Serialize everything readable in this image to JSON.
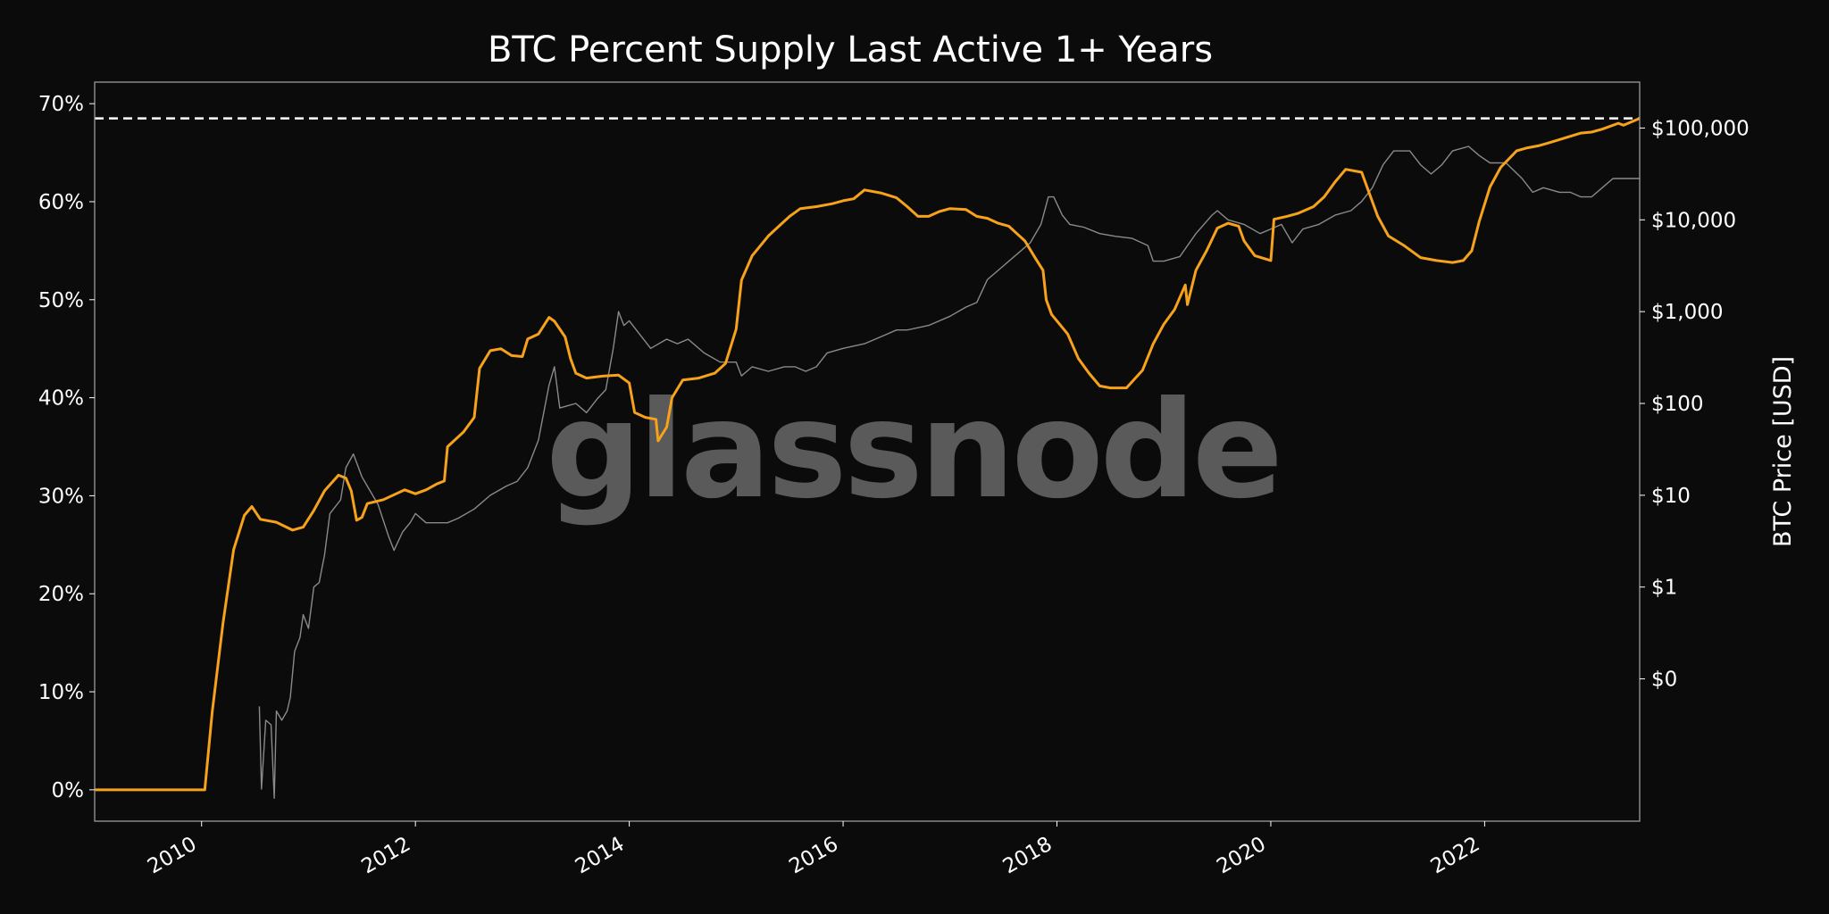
{
  "chart_data": {
    "type": "line",
    "title": "BTC Percent Supply Last Active 1+ Years",
    "ylabel_right": "BTC Price [USD]",
    "watermark": "glassnode",
    "colors": {
      "background": "#0b0b0b",
      "supply": "#f7a21b",
      "price": "#8a8a8a",
      "ath_line": "#ffffff",
      "frame": "#9a9a9a"
    },
    "grid": false,
    "x_range": [
      2009.0,
      2023.45
    ],
    "x_ticks": [
      {
        "value": 2010,
        "label": "2010"
      },
      {
        "value": 2012,
        "label": "2012"
      },
      {
        "value": 2014,
        "label": "2014"
      },
      {
        "value": 2016,
        "label": "2016"
      },
      {
        "value": 2018,
        "label": "2018"
      },
      {
        "value": 2020,
        "label": "2020"
      },
      {
        "value": 2022,
        "label": "2022"
      }
    ],
    "y_left": {
      "range": [
        -3.2,
        72.2
      ],
      "ticks": [
        {
          "value": 0,
          "label": "0%"
        },
        {
          "value": 10,
          "label": "10%"
        },
        {
          "value": 20,
          "label": "20%"
        },
        {
          "value": 30,
          "label": "30%"
        },
        {
          "value": 40,
          "label": "40%"
        },
        {
          "value": 50,
          "label": "50%"
        },
        {
          "value": 60,
          "label": "60%"
        },
        {
          "value": 70,
          "label": "70%"
        }
      ]
    },
    "y_right": {
      "scale": "log",
      "range_log10": [
        -2.55,
        5.5
      ],
      "ticks": [
        {
          "log10": -1,
          "label": "$0"
        },
        {
          "log10": 0,
          "label": "$1"
        },
        {
          "log10": 1,
          "label": "$10"
        },
        {
          "log10": 2,
          "label": "$100"
        },
        {
          "log10": 3,
          "label": "$1,000"
        },
        {
          "log10": 4,
          "label": "$10,000"
        },
        {
          "log10": 5,
          "label": "$100,000"
        }
      ]
    },
    "ath_level": 68.5,
    "series": [
      {
        "name": "",
        "axis": "left",
        "points": [
          [
            2009.0,
            0
          ],
          [
            2010.03,
            0
          ],
          [
            2010.1,
            8
          ],
          [
            2010.2,
            17
          ],
          [
            2010.3,
            24.5
          ],
          [
            2010.4,
            28
          ],
          [
            2010.47,
            28.9
          ],
          [
            2010.55,
            27.6
          ],
          [
            2010.7,
            27.3
          ],
          [
            2010.85,
            26.5
          ],
          [
            2010.95,
            26.8
          ],
          [
            2011.05,
            28.5
          ],
          [
            2011.15,
            30.5
          ],
          [
            2011.28,
            32.1
          ],
          [
            2011.35,
            31.8
          ],
          [
            2011.4,
            30.5
          ],
          [
            2011.45,
            27.5
          ],
          [
            2011.5,
            27.8
          ],
          [
            2011.55,
            29.2
          ],
          [
            2011.7,
            29.6
          ],
          [
            2011.8,
            30.1
          ],
          [
            2011.9,
            30.6
          ],
          [
            2012.0,
            30.2
          ],
          [
            2012.1,
            30.6
          ],
          [
            2012.2,
            31.2
          ],
          [
            2012.27,
            31.5
          ],
          [
            2012.3,
            35
          ],
          [
            2012.45,
            36.5
          ],
          [
            2012.55,
            38
          ],
          [
            2012.6,
            43
          ],
          [
            2012.7,
            44.8
          ],
          [
            2012.8,
            45
          ],
          [
            2012.9,
            44.3
          ],
          [
            2013.0,
            44.2
          ],
          [
            2013.05,
            46
          ],
          [
            2013.15,
            46.5
          ],
          [
            2013.25,
            48.2
          ],
          [
            2013.3,
            47.8
          ],
          [
            2013.4,
            46.2
          ],
          [
            2013.45,
            44
          ],
          [
            2013.5,
            42.5
          ],
          [
            2013.6,
            42
          ],
          [
            2013.75,
            42.2
          ],
          [
            2013.9,
            42.3
          ],
          [
            2014.0,
            41.5
          ],
          [
            2014.05,
            38.5
          ],
          [
            2014.15,
            38
          ],
          [
            2014.25,
            37.8
          ],
          [
            2014.27,
            35.6
          ],
          [
            2014.35,
            37
          ],
          [
            2014.4,
            40
          ],
          [
            2014.5,
            41.8
          ],
          [
            2014.65,
            42
          ],
          [
            2014.8,
            42.5
          ],
          [
            2014.9,
            43.5
          ],
          [
            2015.0,
            47
          ],
          [
            2015.05,
            52
          ],
          [
            2015.15,
            54.5
          ],
          [
            2015.3,
            56.5
          ],
          [
            2015.4,
            57.5
          ],
          [
            2015.5,
            58.5
          ],
          [
            2015.6,
            59.3
          ],
          [
            2015.75,
            59.5
          ],
          [
            2015.9,
            59.8
          ],
          [
            2016.0,
            60.1
          ],
          [
            2016.1,
            60.3
          ],
          [
            2016.2,
            61.2
          ],
          [
            2016.35,
            60.9
          ],
          [
            2016.5,
            60.4
          ],
          [
            2016.6,
            59.5
          ],
          [
            2016.7,
            58.5
          ],
          [
            2016.8,
            58.5
          ],
          [
            2016.9,
            59
          ],
          [
            2017.0,
            59.3
          ],
          [
            2017.15,
            59.2
          ],
          [
            2017.25,
            58.5
          ],
          [
            2017.35,
            58.3
          ],
          [
            2017.45,
            57.8
          ],
          [
            2017.55,
            57.5
          ],
          [
            2017.7,
            56
          ],
          [
            2017.8,
            54.2
          ],
          [
            2017.87,
            53
          ],
          [
            2017.9,
            50
          ],
          [
            2017.95,
            48.5
          ],
          [
            2018.1,
            46.5
          ],
          [
            2018.2,
            44
          ],
          [
            2018.3,
            42.5
          ],
          [
            2018.4,
            41.2
          ],
          [
            2018.5,
            41
          ],
          [
            2018.65,
            41
          ],
          [
            2018.8,
            42.8
          ],
          [
            2018.9,
            45.5
          ],
          [
            2019.0,
            47.5
          ],
          [
            2019.1,
            49
          ],
          [
            2019.2,
            51.5
          ],
          [
            2019.22,
            49.5
          ],
          [
            2019.3,
            53
          ],
          [
            2019.4,
            55
          ],
          [
            2019.5,
            57.3
          ],
          [
            2019.6,
            57.8
          ],
          [
            2019.7,
            57.5
          ],
          [
            2019.75,
            56
          ],
          [
            2019.85,
            54.5
          ],
          [
            2020.0,
            54
          ],
          [
            2020.03,
            58.2
          ],
          [
            2020.15,
            58.5
          ],
          [
            2020.25,
            58.8
          ],
          [
            2020.4,
            59.5
          ],
          [
            2020.5,
            60.5
          ],
          [
            2020.6,
            62
          ],
          [
            2020.7,
            63.3
          ],
          [
            2020.85,
            63
          ],
          [
            2020.9,
            61.5
          ],
          [
            2021.0,
            58.5
          ],
          [
            2021.1,
            56.5
          ],
          [
            2021.25,
            55.5
          ],
          [
            2021.4,
            54.3
          ],
          [
            2021.55,
            54
          ],
          [
            2021.7,
            53.8
          ],
          [
            2021.8,
            54
          ],
          [
            2021.88,
            55
          ],
          [
            2021.95,
            58
          ],
          [
            2022.05,
            61.5
          ],
          [
            2022.15,
            63.5
          ],
          [
            2022.3,
            65.2
          ],
          [
            2022.4,
            65.5
          ],
          [
            2022.5,
            65.7
          ],
          [
            2022.6,
            66
          ],
          [
            2022.75,
            66.5
          ],
          [
            2022.9,
            67
          ],
          [
            2023.0,
            67.1
          ],
          [
            2023.1,
            67.4
          ],
          [
            2023.25,
            68
          ],
          [
            2023.3,
            67.8
          ],
          [
            2023.45,
            68.5
          ]
        ]
      },
      {
        "name": "",
        "axis": "right_log",
        "points": [
          [
            2010.54,
            -1.3
          ],
          [
            2010.56,
            -2.2
          ],
          [
            2010.6,
            -1.45
          ],
          [
            2010.65,
            -1.5
          ],
          [
            2010.68,
            -2.3
          ],
          [
            2010.7,
            -1.35
          ],
          [
            2010.75,
            -1.45
          ],
          [
            2010.8,
            -1.35
          ],
          [
            2010.83,
            -1.2
          ],
          [
            2010.87,
            -0.7
          ],
          [
            2010.92,
            -0.55
          ],
          [
            2010.95,
            -0.3
          ],
          [
            2011.0,
            -0.45
          ],
          [
            2011.05,
            0
          ],
          [
            2011.1,
            0.05
          ],
          [
            2011.15,
            0.35
          ],
          [
            2011.2,
            0.8
          ],
          [
            2011.3,
            0.95
          ],
          [
            2011.35,
            1.3
          ],
          [
            2011.42,
            1.45
          ],
          [
            2011.5,
            1.2
          ],
          [
            2011.55,
            1.1
          ],
          [
            2011.65,
            0.9
          ],
          [
            2011.75,
            0.55
          ],
          [
            2011.8,
            0.4
          ],
          [
            2011.88,
            0.6
          ],
          [
            2011.95,
            0.7
          ],
          [
            2012.0,
            0.8
          ],
          [
            2012.1,
            0.7
          ],
          [
            2012.3,
            0.7
          ],
          [
            2012.4,
            0.75
          ],
          [
            2012.55,
            0.85
          ],
          [
            2012.7,
            1.0
          ],
          [
            2012.85,
            1.1
          ],
          [
            2012.95,
            1.15
          ],
          [
            2013.05,
            1.3
          ],
          [
            2013.15,
            1.6
          ],
          [
            2013.25,
            2.2
          ],
          [
            2013.3,
            2.4
          ],
          [
            2013.35,
            1.95
          ],
          [
            2013.5,
            2.0
          ],
          [
            2013.6,
            1.9
          ],
          [
            2013.7,
            2.05
          ],
          [
            2013.78,
            2.15
          ],
          [
            2013.85,
            2.6
          ],
          [
            2013.9,
            3.0
          ],
          [
            2013.95,
            2.85
          ],
          [
            2014.0,
            2.9
          ],
          [
            2014.1,
            2.75
          ],
          [
            2014.2,
            2.6
          ],
          [
            2014.35,
            2.7
          ],
          [
            2014.45,
            2.65
          ],
          [
            2014.55,
            2.7
          ],
          [
            2014.7,
            2.55
          ],
          [
            2014.85,
            2.45
          ],
          [
            2015.0,
            2.45
          ],
          [
            2015.05,
            2.3
          ],
          [
            2015.15,
            2.4
          ],
          [
            2015.3,
            2.35
          ],
          [
            2015.45,
            2.4
          ],
          [
            2015.55,
            2.4
          ],
          [
            2015.65,
            2.35
          ],
          [
            2015.75,
            2.4
          ],
          [
            2015.85,
            2.55
          ],
          [
            2016.0,
            2.6
          ],
          [
            2016.2,
            2.65
          ],
          [
            2016.4,
            2.75
          ],
          [
            2016.5,
            2.8
          ],
          [
            2016.6,
            2.8
          ],
          [
            2016.8,
            2.85
          ],
          [
            2017.0,
            2.95
          ],
          [
            2017.15,
            3.05
          ],
          [
            2017.25,
            3.1
          ],
          [
            2017.35,
            3.35
          ],
          [
            2017.45,
            3.45
          ],
          [
            2017.55,
            3.55
          ],
          [
            2017.65,
            3.65
          ],
          [
            2017.75,
            3.75
          ],
          [
            2017.85,
            3.95
          ],
          [
            2017.92,
            4.25
          ],
          [
            2017.97,
            4.25
          ],
          [
            2018.05,
            4.05
          ],
          [
            2018.12,
            3.95
          ],
          [
            2018.25,
            3.92
          ],
          [
            2018.4,
            3.85
          ],
          [
            2018.55,
            3.82
          ],
          [
            2018.7,
            3.8
          ],
          [
            2018.85,
            3.72
          ],
          [
            2018.9,
            3.55
          ],
          [
            2019.0,
            3.55
          ],
          [
            2019.15,
            3.6
          ],
          [
            2019.3,
            3.85
          ],
          [
            2019.45,
            4.05
          ],
          [
            2019.5,
            4.1
          ],
          [
            2019.6,
            4.0
          ],
          [
            2019.75,
            3.95
          ],
          [
            2019.9,
            3.85
          ],
          [
            2020.0,
            3.9
          ],
          [
            2020.1,
            3.95
          ],
          [
            2020.2,
            3.75
          ],
          [
            2020.3,
            3.9
          ],
          [
            2020.45,
            3.95
          ],
          [
            2020.6,
            4.05
          ],
          [
            2020.75,
            4.1
          ],
          [
            2020.85,
            4.2
          ],
          [
            2020.95,
            4.35
          ],
          [
            2021.05,
            4.6
          ],
          [
            2021.15,
            4.75
          ],
          [
            2021.3,
            4.75
          ],
          [
            2021.4,
            4.6
          ],
          [
            2021.5,
            4.5
          ],
          [
            2021.6,
            4.6
          ],
          [
            2021.7,
            4.75
          ],
          [
            2021.85,
            4.8
          ],
          [
            2021.95,
            4.7
          ],
          [
            2022.05,
            4.62
          ],
          [
            2022.2,
            4.62
          ],
          [
            2022.35,
            4.45
          ],
          [
            2022.45,
            4.3
          ],
          [
            2022.55,
            4.35
          ],
          [
            2022.7,
            4.3
          ],
          [
            2022.8,
            4.3
          ],
          [
            2022.9,
            4.25
          ],
          [
            2023.0,
            4.25
          ],
          [
            2023.1,
            4.35
          ],
          [
            2023.2,
            4.45
          ],
          [
            2023.35,
            4.45
          ],
          [
            2023.45,
            4.45
          ]
        ]
      }
    ]
  }
}
